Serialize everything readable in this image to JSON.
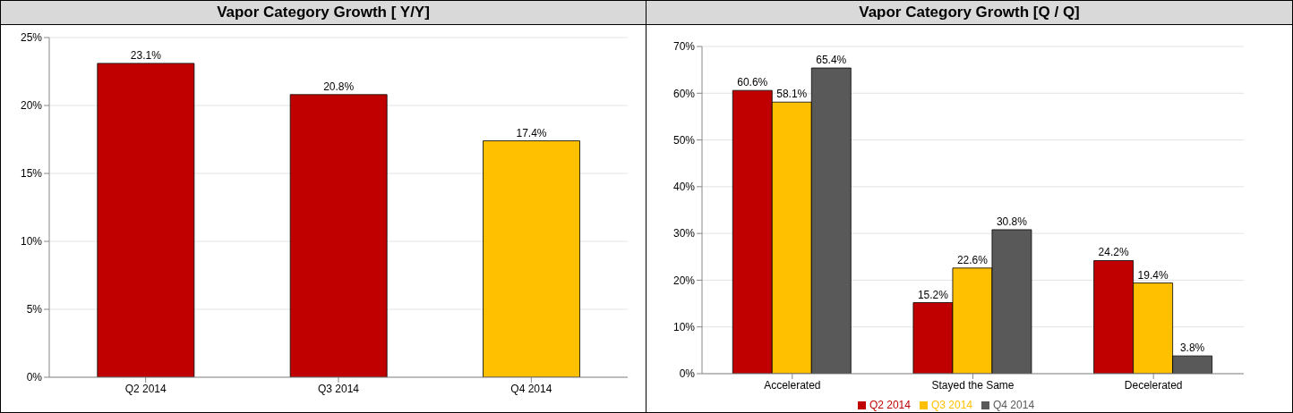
{
  "chart_data": [
    {
      "type": "bar",
      "title": "Vapor Category Growth [ Y/Y]",
      "categories": [
        "Q2 2014",
        "Q3 2014",
        "Q4 2014"
      ],
      "values": [
        23.1,
        20.8,
        17.4
      ],
      "colors": [
        "#c00000",
        "#c00000",
        "#ffc000"
      ],
      "value_labels": [
        "23.1%",
        "20.8%",
        "17.4%"
      ],
      "ylim": [
        0,
        25
      ],
      "yticks": [
        {
          "value": 0,
          "label": "0%"
        },
        {
          "value": 5,
          "label": "5%"
        },
        {
          "value": 10,
          "label": "10%"
        },
        {
          "value": 15,
          "label": "15%"
        },
        {
          "value": 20,
          "label": "20%"
        },
        {
          "value": 25,
          "label": "25%"
        }
      ],
      "grid": "y",
      "legend": false
    },
    {
      "type": "bar",
      "title": "Vapor Category Growth [Q / Q]",
      "categories": [
        "Accelerated",
        "Stayed the Same",
        "Decelerated"
      ],
      "series": [
        {
          "name": "Q2 2014",
          "color": "#c00000",
          "values": [
            60.6,
            15.2,
            24.2
          ],
          "value_labels": [
            "60.6%",
            "15.2%",
            "24.2%"
          ]
        },
        {
          "name": "Q3 2014",
          "color": "#ffc000",
          "values": [
            58.1,
            22.6,
            19.4
          ],
          "value_labels": [
            "58.1%",
            "22.6%",
            "19.4%"
          ]
        },
        {
          "name": "Q4 2014",
          "color": "#595959",
          "values": [
            65.4,
            30.8,
            3.8
          ],
          "value_labels": [
            "65.4%",
            "30.8%",
            "3.8%"
          ]
        }
      ],
      "ylim": [
        0,
        70
      ],
      "yticks": [
        {
          "value": 0,
          "label": "0%"
        },
        {
          "value": 10,
          "label": "10%"
        },
        {
          "value": 20,
          "label": "20%"
        },
        {
          "value": 30,
          "label": "30%"
        },
        {
          "value": 40,
          "label": "40%"
        },
        {
          "value": 50,
          "label": "50%"
        },
        {
          "value": 60,
          "label": "60%"
        },
        {
          "value": 70,
          "label": "70%"
        }
      ],
      "grid": "y",
      "legend": "bottom"
    }
  ]
}
